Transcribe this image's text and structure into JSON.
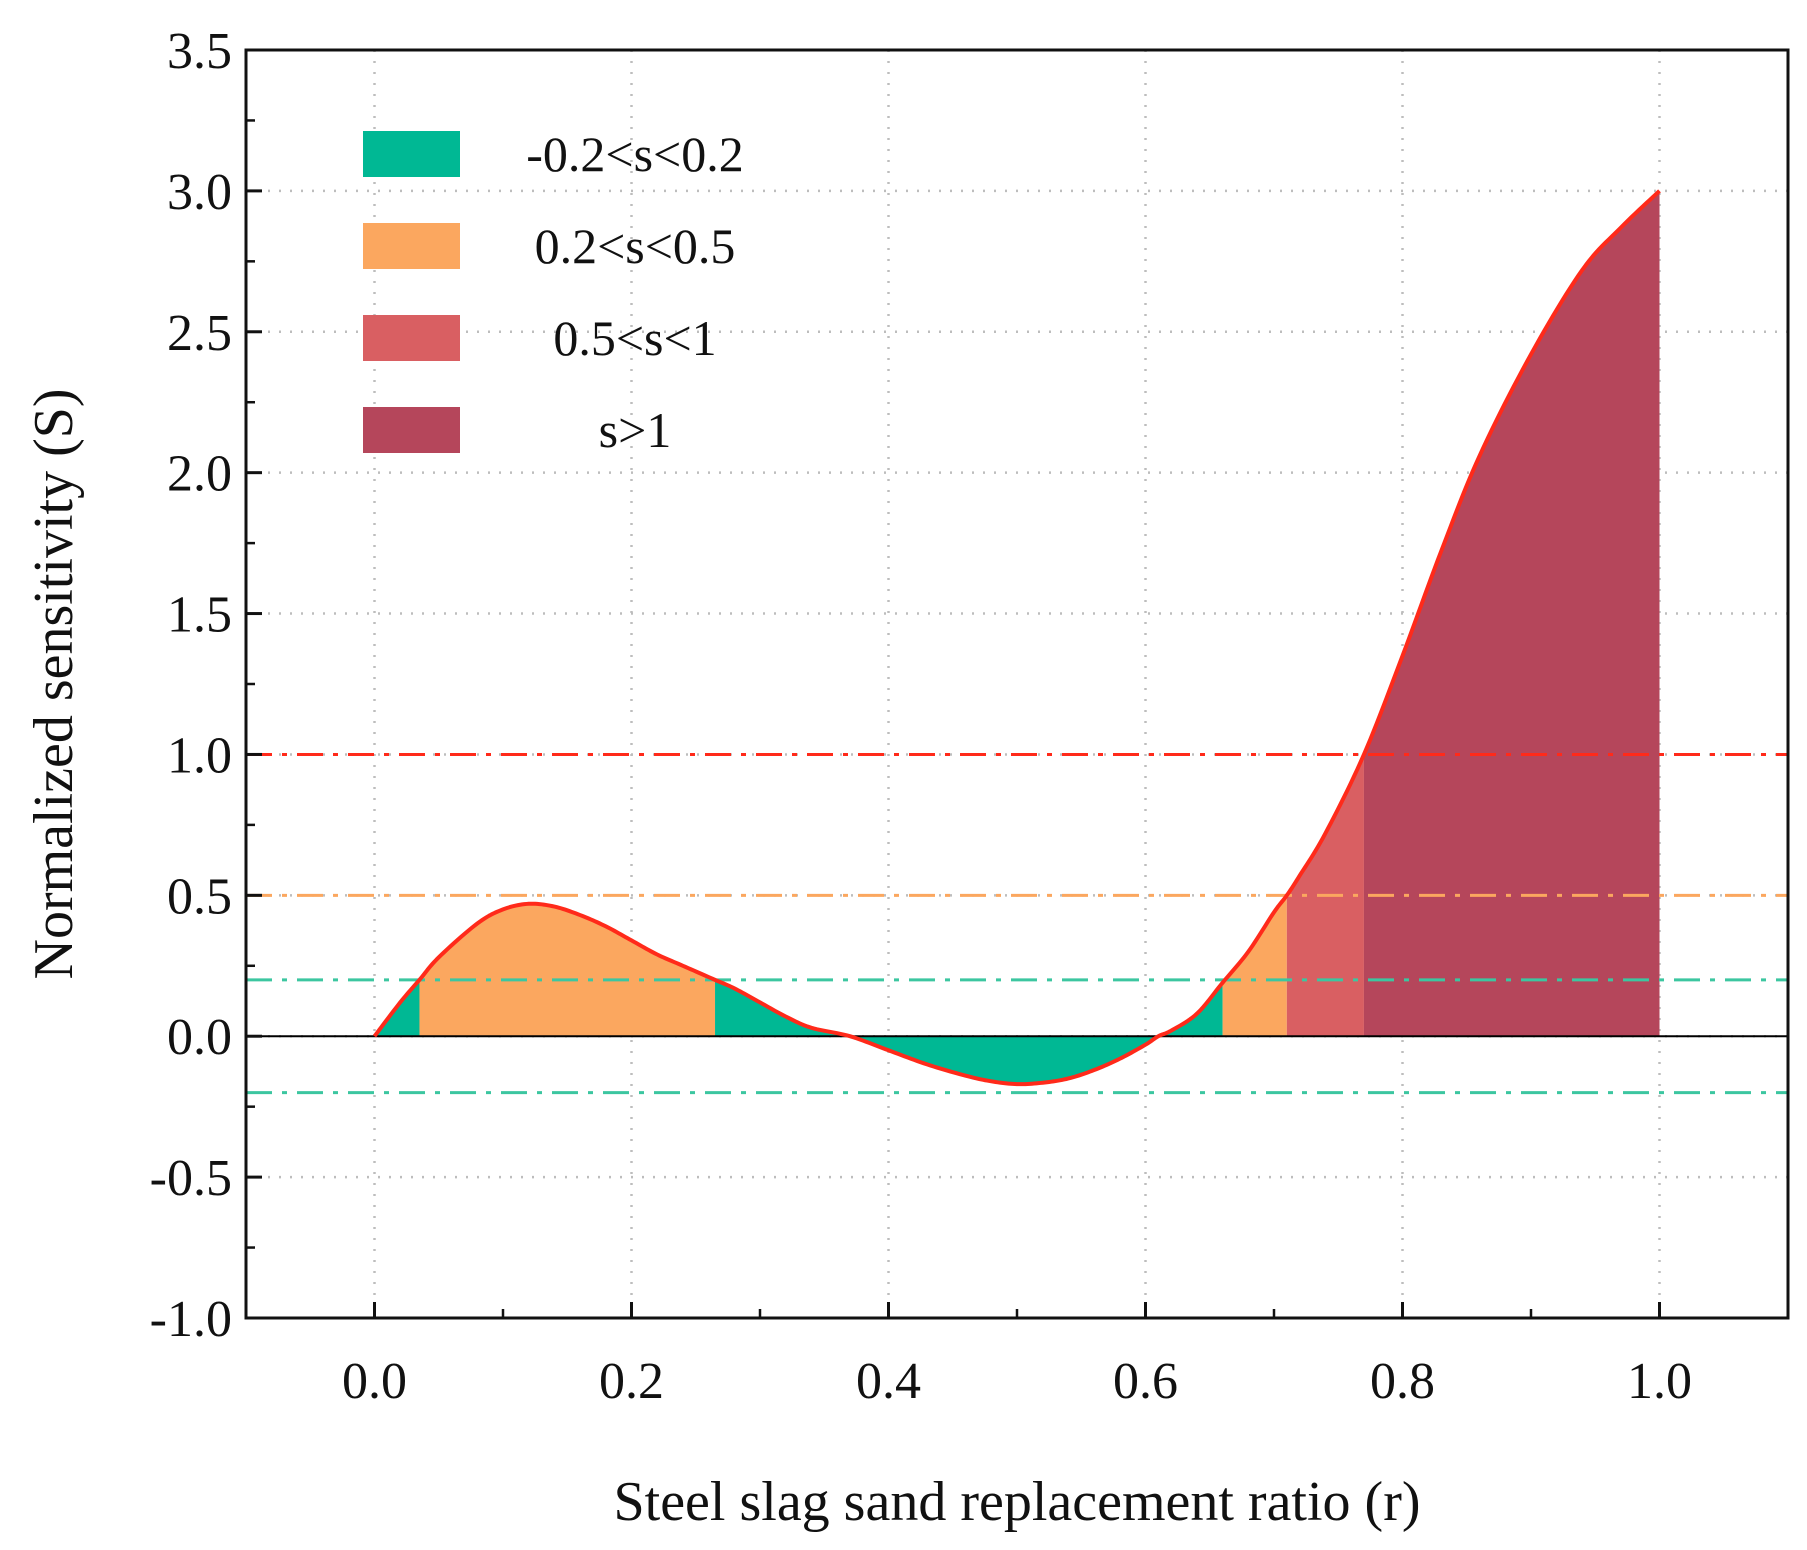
{
  "chart_data": {
    "type": "area",
    "title": "",
    "xlabel": "Steel slag sand replacement ratio (r)",
    "ylabel": "Normalized sensitivity (S)",
    "xlim": [
      -0.1,
      1.1
    ],
    "ylim": [
      -1.0,
      3.5
    ],
    "x_ticks": [
      0.0,
      0.2,
      0.4,
      0.6,
      0.8,
      1.0
    ],
    "x_tick_labels": [
      "0.0",
      "0.2",
      "0.4",
      "0.6",
      "0.8",
      "1.0"
    ],
    "y_ticks": [
      -1.0,
      -0.5,
      0.0,
      0.5,
      1.0,
      1.5,
      2.0,
      2.5,
      3.0,
      3.5
    ],
    "y_tick_labels": [
      "-1.0",
      "-0.5",
      "0.0",
      "0.5",
      "1.0",
      "1.5",
      "2.0",
      "2.5",
      "3.0",
      "3.5"
    ],
    "grid": true,
    "legend_position": "top-left",
    "series": [
      {
        "name": "S(r)",
        "color": "#ff2a1a",
        "x": [
          0.0,
          0.02,
          0.035,
          0.05,
          0.08,
          0.1,
          0.12,
          0.14,
          0.16,
          0.18,
          0.2,
          0.22,
          0.24,
          0.265,
          0.28,
          0.3,
          0.32,
          0.34,
          0.37,
          0.4,
          0.43,
          0.46,
          0.48,
          0.5,
          0.52,
          0.54,
          0.56,
          0.58,
          0.6,
          0.61,
          0.62,
          0.64,
          0.66,
          0.68,
          0.7,
          0.71,
          0.72,
          0.74,
          0.77,
          0.8,
          0.83,
          0.86,
          0.9,
          0.94,
          0.97,
          1.0
        ],
        "y": [
          0.0,
          0.12,
          0.2,
          0.28,
          0.4,
          0.45,
          0.47,
          0.46,
          0.43,
          0.39,
          0.34,
          0.29,
          0.25,
          0.2,
          0.17,
          0.12,
          0.07,
          0.03,
          0.0,
          -0.05,
          -0.1,
          -0.14,
          -0.16,
          -0.17,
          -0.165,
          -0.15,
          -0.12,
          -0.08,
          -0.03,
          0.0,
          0.02,
          0.08,
          0.19,
          0.3,
          0.44,
          0.5,
          0.57,
          0.72,
          1.0,
          1.35,
          1.72,
          2.06,
          2.42,
          2.72,
          2.87,
          3.0
        ]
      }
    ],
    "bands": [
      {
        "label": "-0.2<s<0.2",
        "color": "#00b894",
        "x_start": 0.0,
        "x_end": 0.035
      },
      {
        "label": "0.2<s<0.5",
        "color": "#fba75f",
        "x_start": 0.035,
        "x_end": 0.265
      },
      {
        "label": "-0.2<s<0.2",
        "color": "#00b894",
        "x_start": 0.265,
        "x_end": 0.66
      },
      {
        "label": "0.2<s<0.5",
        "color": "#fba75f",
        "x_start": 0.66,
        "x_end": 0.71
      },
      {
        "label": "0.5<s<1",
        "color": "#d95f62",
        "x_start": 0.71,
        "x_end": 0.77
      },
      {
        "label": "s>1",
        "color": "#b5465b",
        "x_start": 0.77,
        "x_end": 1.0
      }
    ],
    "reference_lines": [
      {
        "y": 1.0,
        "color": "#ff2a1a",
        "style": "dash-dot"
      },
      {
        "y": 0.5,
        "color": "#fba75f",
        "style": "dash-dot"
      },
      {
        "y": 0.2,
        "color": "#3cc6a0",
        "style": "dash-dot"
      },
      {
        "y": -0.2,
        "color": "#3cc6a0",
        "style": "dash-dot"
      },
      {
        "y": 0.0,
        "color": "#000000",
        "style": "solid"
      }
    ],
    "legend": [
      {
        "label": "-0.2<s<0.2",
        "color": "#00b894"
      },
      {
        "label": "0.2<s<0.5",
        "color": "#fba75f"
      },
      {
        "label": "0.5<s<1",
        "color": "#d95f62"
      },
      {
        "label": "s>1",
        "color": "#b5465b"
      }
    ]
  }
}
